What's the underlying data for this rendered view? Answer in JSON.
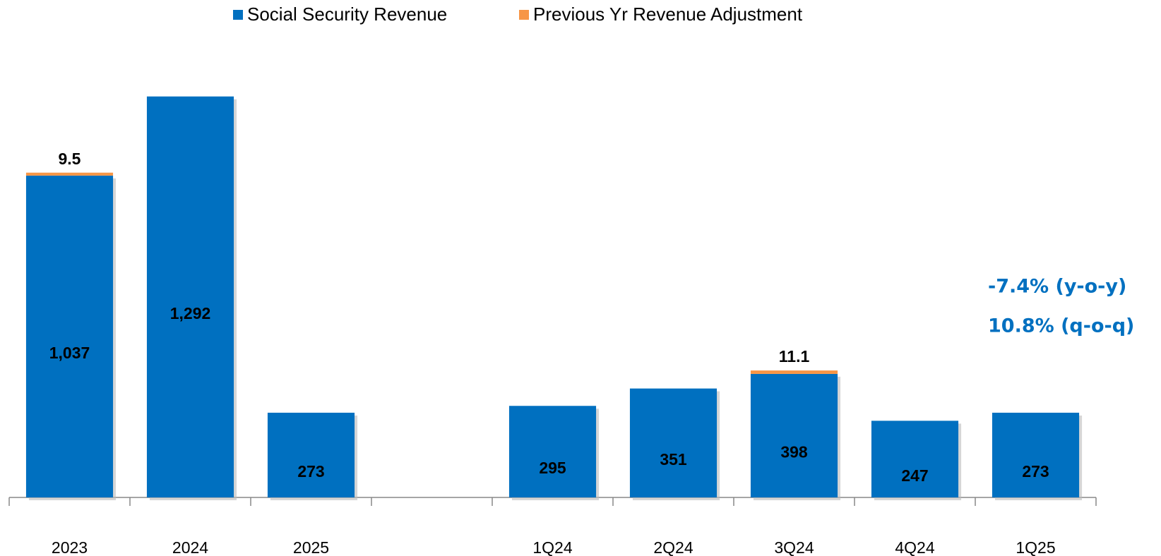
{
  "chart_data": {
    "type": "stacked_bar",
    "categories": [
      "2023",
      "2024",
      "2025",
      null,
      "1Q24",
      "2Q24",
      "3Q24",
      "4Q24",
      "1Q25"
    ],
    "series": [
      {
        "name": "Social Security Revenue",
        "color": "#0070c0",
        "values": [
          1037,
          1292,
          273,
          null,
          295,
          351,
          398,
          247,
          273
        ],
        "value_labels": [
          "1,037",
          "1,292",
          "273",
          null,
          "295",
          "351",
          "398",
          "247",
          "273"
        ]
      },
      {
        "name": "Previous Yr Revenue Adjustment",
        "color": "#f79646",
        "values": [
          9.5,
          null,
          null,
          null,
          null,
          null,
          11.1,
          null,
          null
        ]
      }
    ],
    "ylim": [
      0,
      1330
    ],
    "legend": "top",
    "annotations": [
      "-7.4% (y-o-y)",
      "10.8% (q-o-q)"
    ],
    "annotation_color": "#0070c0"
  }
}
